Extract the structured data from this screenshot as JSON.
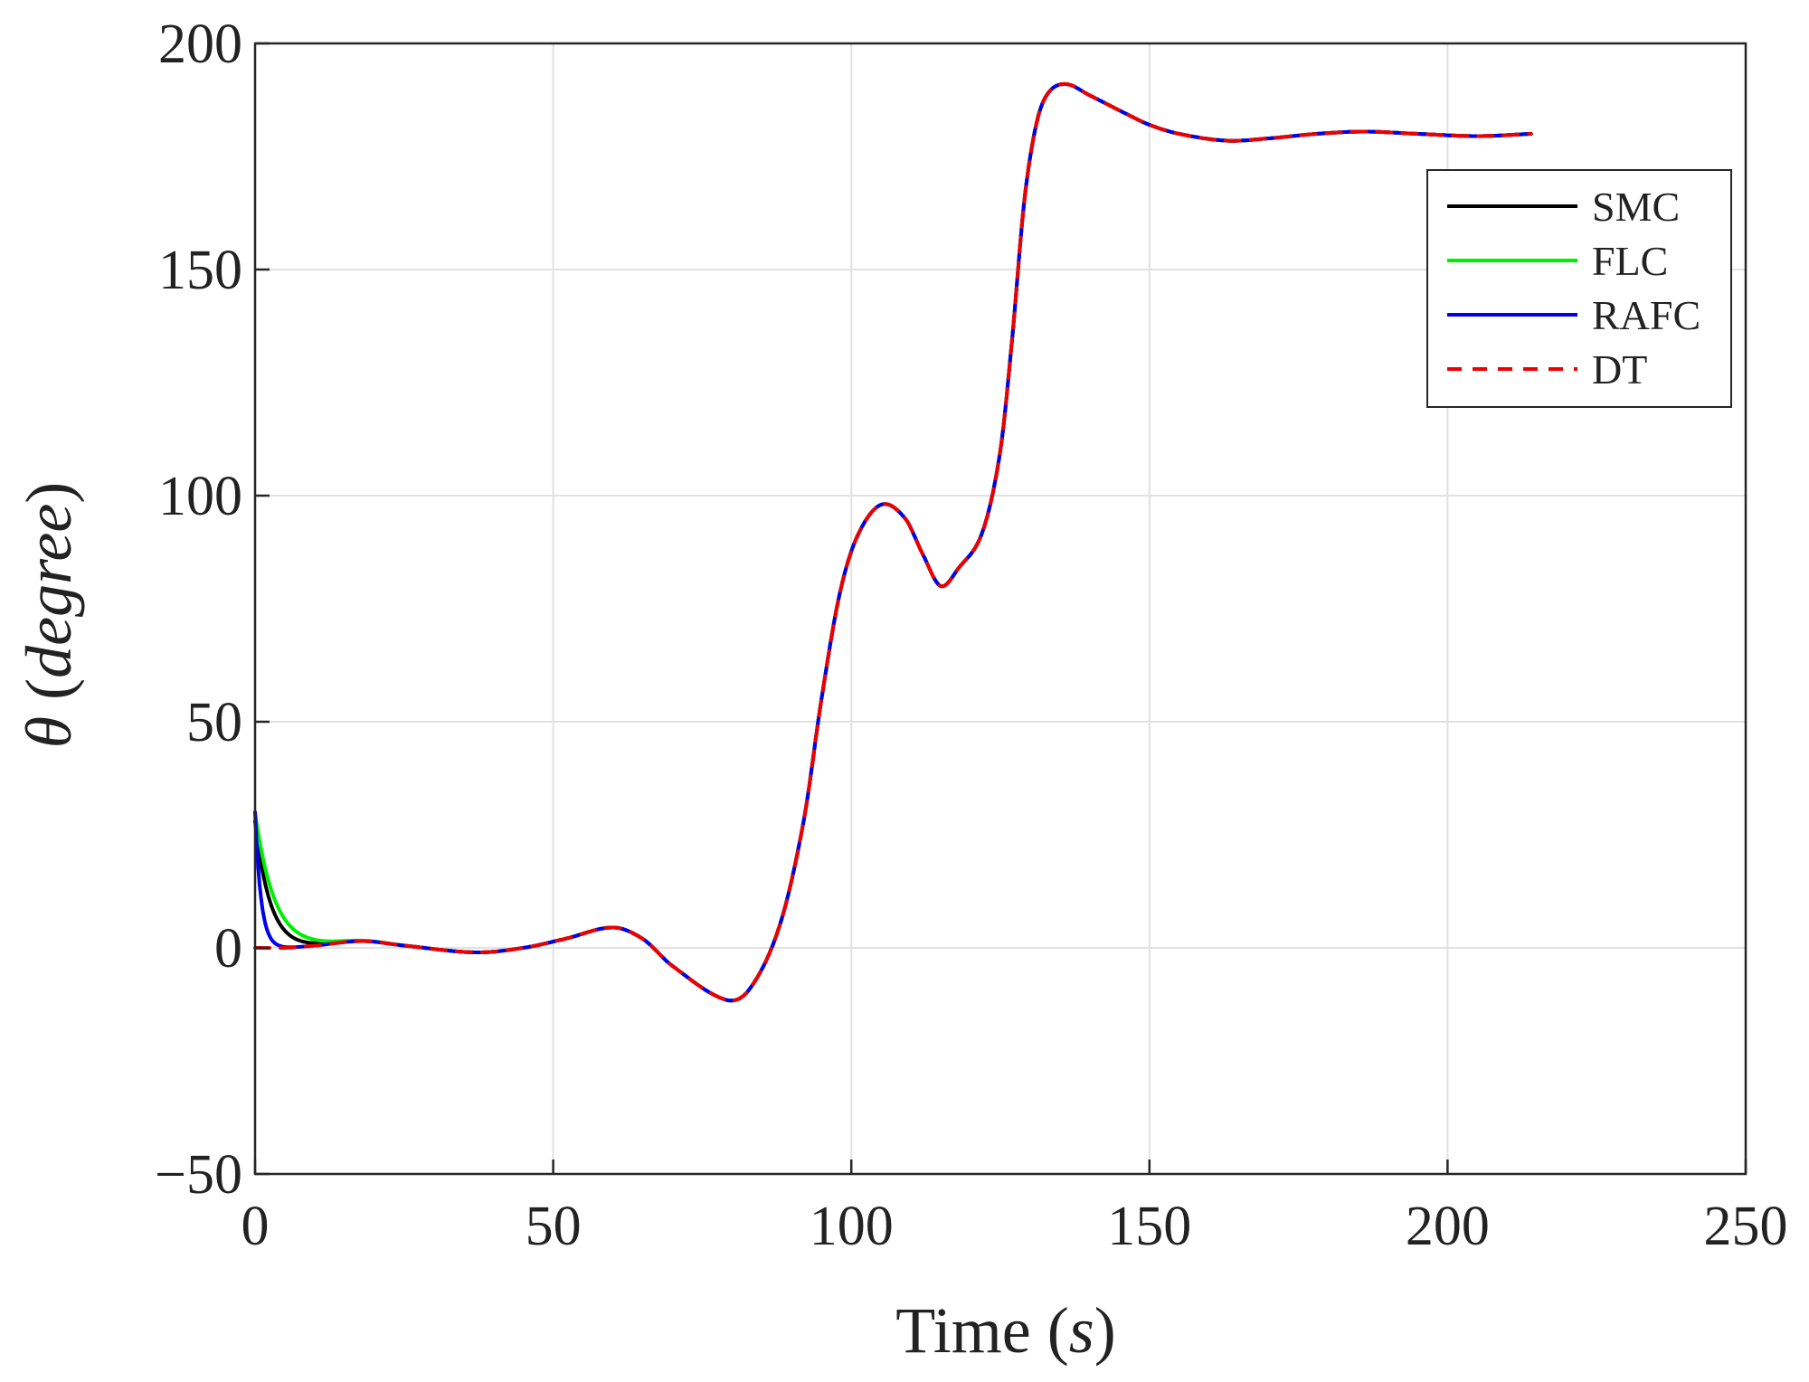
{
  "chart_data": {
    "type": "line",
    "title": "",
    "xlabel": "Time",
    "xlabel_unit": "s",
    "ylabel_symbol": "θ",
    "ylabel_unit": "degree",
    "xlim": [
      0,
      250
    ],
    "ylim": [
      -50,
      200
    ],
    "xticks": [
      0,
      50,
      100,
      150,
      200,
      250
    ],
    "yticks": [
      -50,
      0,
      50,
      100,
      150,
      200
    ],
    "ytick_labels": [
      "−50",
      "0",
      "50",
      "100",
      "150",
      "200"
    ],
    "grid": true,
    "legend_position": "top-right",
    "reference": {
      "x": [
        0,
        5,
        10,
        18,
        25,
        37,
        45,
        52,
        60,
        65,
        70,
        79,
        83,
        88,
        92,
        95,
        98,
        101,
        105,
        109,
        112,
        115,
        118,
        122,
        125,
        127,
        129,
        131,
        133,
        136,
        140,
        146,
        150,
        155,
        163,
        170,
        178,
        186,
        195,
        205,
        214
      ],
      "y": [
        0,
        0,
        0.5,
        1.5,
        0.5,
        -1,
        0,
        2,
        4.5,
        2,
        -4,
        -11.5,
        -9,
        5,
        28,
        55,
        78,
        91,
        98,
        95,
        87,
        80,
        84,
        92,
        110,
        135,
        165,
        182,
        189,
        191,
        188.5,
        184.5,
        182,
        180,
        178.5,
        179,
        180,
        180.5,
        180,
        179.5,
        180
      ]
    },
    "series": [
      {
        "name": "SMC",
        "color": "#000000",
        "dash": "solid",
        "start_value": 28,
        "decay_time": 2.5
      },
      {
        "name": "FLC",
        "color": "#00ee00",
        "dash": "solid",
        "start_value": 30,
        "decay_time": 3.2
      },
      {
        "name": "RAFC",
        "color": "#0000ee",
        "dash": "solid",
        "start_value": 30,
        "decay_time": 1.0
      },
      {
        "name": "DT",
        "color": "#ee0000",
        "dash": "dashed",
        "start_value": 0,
        "decay_time": 0
      }
    ]
  }
}
